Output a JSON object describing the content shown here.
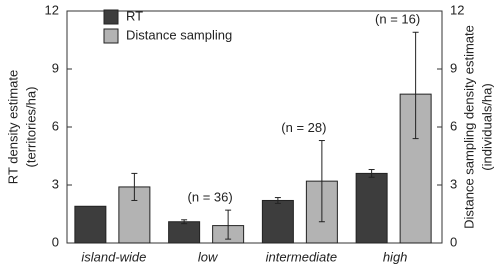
{
  "chart_data": {
    "type": "bar",
    "y_label": [
      "RT density estimate",
      "(territories/ha)"
    ],
    "y2_label": [
      "Distance sampling density estimate",
      "(individuals/ha)"
    ],
    "categories": [
      "island-wide",
      "low",
      "intermediate",
      "high"
    ],
    "annotations": [
      null,
      "(n = 36)",
      "(n = 28)",
      "(n = 16)"
    ],
    "series": [
      {
        "name": "RT",
        "color": "#3d3d3d",
        "values": [
          1.9,
          1.1,
          2.2,
          3.6
        ],
        "lower": [
          null,
          1.0,
          2.05,
          3.4
        ],
        "upper": [
          null,
          1.2,
          2.35,
          3.8
        ]
      },
      {
        "name": "Distance sampling",
        "color": "#b3b3b3",
        "axis": "y2",
        "values": [
          2.9,
          0.9,
          3.2,
          7.7
        ],
        "lower": [
          2.2,
          0.2,
          1.1,
          5.4
        ],
        "upper": [
          3.6,
          1.7,
          5.3,
          10.9
        ]
      }
    ],
    "ylim": [
      0,
      12
    ],
    "yticks": [
      0,
      3,
      6,
      9,
      12
    ],
    "y2lim": [
      0,
      12
    ],
    "y2ticks": [
      0,
      3,
      6,
      9,
      12
    ]
  }
}
